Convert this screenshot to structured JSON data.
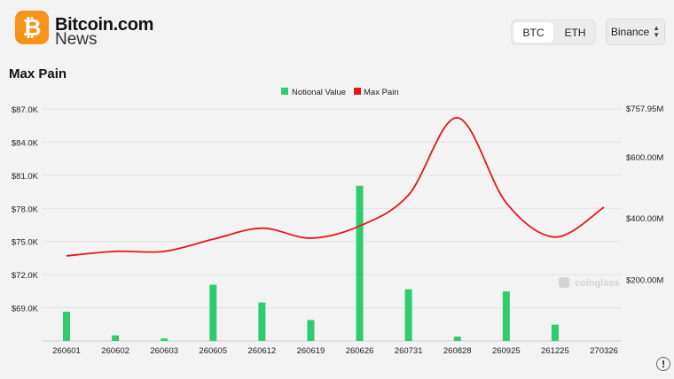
{
  "brand": {
    "name_top": "Bitcoin.com",
    "name_bottom": "News",
    "badge_glyph": "₿"
  },
  "toggle": {
    "options": [
      "BTC",
      "ETH"
    ],
    "selected": "BTC"
  },
  "exchange": {
    "selected": "Binance"
  },
  "page_title": "Max Pain",
  "watermark": "coinglass",
  "colors": {
    "bar": "#2ecc71",
    "line": "#e8151b",
    "brand": "#f7931a"
  },
  "chart_data": {
    "type": "bar+line",
    "categories": [
      "260601",
      "260602",
      "260603",
      "260605",
      "260612",
      "260619",
      "260626",
      "260731",
      "260828",
      "260925",
      "261225",
      "270326"
    ],
    "series": [
      {
        "name": "Notional Value",
        "type": "bar",
        "axis": "right",
        "values": [
          95,
          18,
          8,
          183,
          125,
          68,
          505,
          168,
          14,
          161,
          53,
          null
        ]
      },
      {
        "name": "Max Pain",
        "type": "line",
        "axis": "left",
        "values": [
          73700,
          74100,
          74100,
          75200,
          76200,
          75300,
          76400,
          79200,
          86200,
          78500,
          75400,
          78100
        ]
      }
    ],
    "left_axis": {
      "ticks": [
        "$69.0K",
        "$72.0K",
        "$75.0K",
        "$78.0K",
        "$81.0K",
        "$84.0K",
        "$87.0K"
      ],
      "tick_values": [
        69000,
        72000,
        75000,
        78000,
        81000,
        84000,
        87000
      ]
    },
    "right_axis": {
      "ticks": [
        "$200.00M",
        "$400.00M",
        "$600.00M",
        "$757.95M"
      ],
      "tick_values": [
        200,
        400,
        600,
        757.95
      ]
    },
    "legend_position": "top-center",
    "grid": "horizontal"
  }
}
